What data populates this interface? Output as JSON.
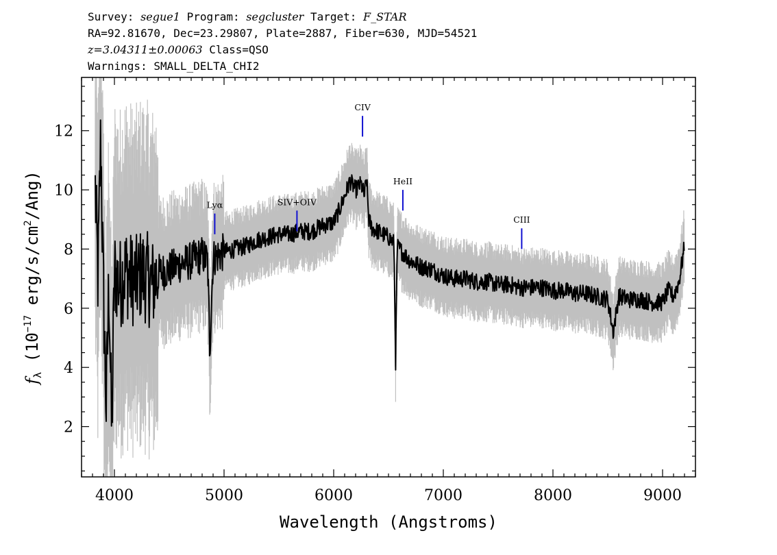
{
  "header": {
    "line1": {
      "survey_label": "Survey: ",
      "survey": "segue1",
      "program_label": " Program: ",
      "program": "segcluster",
      "target_label": " Target: ",
      "target": "F_STAR"
    },
    "line2": "RA=92.81670, Dec=23.29807, Plate=2887, Fiber=630, MJD=54521",
    "line3": {
      "z": "z=3.04311±0.00063",
      "class": " Class=QSO"
    },
    "line4": "Warnings: SMALL_DELTA_CHI2"
  },
  "chart_data": {
    "type": "line",
    "xlabel": "Wavelength (Angstroms)",
    "ylabel": {
      "symbol": "f",
      "sub": "λ",
      "text_open": " (10",
      "sup1": "−17",
      "text_mid": " erg/s/cm",
      "sup2": "2",
      "text_close": "/Ang)"
    },
    "xlim": [
      3700,
      9300
    ],
    "ylim": [
      0.3,
      13.8
    ],
    "xticks": [
      4000,
      5000,
      6000,
      7000,
      8000,
      9000
    ],
    "yticks": [
      2,
      4,
      6,
      8,
      10,
      12
    ],
    "colors": {
      "flux": "#000000",
      "noise": "#c0c0c0",
      "line_marker": "#1010d0"
    },
    "lines": [
      {
        "name": "Lyα",
        "wavelength": 4915,
        "y_top": 9.2,
        "y_bottom": 8.5
      },
      {
        "name": "SIV+OIV",
        "wavelength": 5665,
        "y_top": 9.3,
        "y_bottom": 8.6
      },
      {
        "name": "CIV",
        "wavelength": 6263,
        "y_top": 12.5,
        "y_bottom": 11.8
      },
      {
        "name": "HeII",
        "wavelength": 6631,
        "y_top": 10.0,
        "y_bottom": 9.3
      },
      {
        "name": "CIII",
        "wavelength": 7715,
        "y_top": 8.7,
        "y_bottom": 8.0
      }
    ],
    "series": [
      {
        "name": "flux",
        "x": [
          3825,
          3850,
          3875,
          3900,
          3925,
          3950,
          3975,
          4000,
          4050,
          4100,
          4150,
          4200,
          4250,
          4300,
          4350,
          4400,
          4500,
          4600,
          4700,
          4800,
          4850,
          4870,
          4900,
          4950,
          5000,
          5100,
          5200,
          5300,
          5400,
          5500,
          5600,
          5700,
          5800,
          5900,
          6000,
          6050,
          6100,
          6150,
          6200,
          6250,
          6280,
          6300,
          6320,
          6350,
          6400,
          6450,
          6500,
          6550,
          6565,
          6580,
          6600,
          6650,
          6700,
          6800,
          6900,
          7000,
          7100,
          7200,
          7300,
          7400,
          7500,
          7600,
          7700,
          7800,
          7900,
          8000,
          8100,
          8200,
          8300,
          8400,
          8500,
          8550,
          8600,
          8700,
          8800,
          8900,
          9000,
          9050,
          9100,
          9150,
          9200
        ],
        "y": [
          10.0,
          7.0,
          11.8,
          6.5,
          2.6,
          7.0,
          1.7,
          7.2,
          6.8,
          7.3,
          7.0,
          6.9,
          7.2,
          7.0,
          6.8,
          7.2,
          7.3,
          7.5,
          7.6,
          7.8,
          7.6,
          4.6,
          7.7,
          7.8,
          7.9,
          8.0,
          8.1,
          8.3,
          8.4,
          8.5,
          8.5,
          8.6,
          8.6,
          8.8,
          8.9,
          9.3,
          9.8,
          10.3,
          10.0,
          10.2,
          9.8,
          10.4,
          9.0,
          8.7,
          8.6,
          8.5,
          8.4,
          8.2,
          4.2,
          8.1,
          8.0,
          7.8,
          7.6,
          7.4,
          7.3,
          7.1,
          7.0,
          7.0,
          6.9,
          6.9,
          6.8,
          6.8,
          6.7,
          6.7,
          6.7,
          6.6,
          6.6,
          6.5,
          6.5,
          6.4,
          6.3,
          5.2,
          6.4,
          6.3,
          6.3,
          6.2,
          6.2,
          6.6,
          6.4,
          6.9,
          8.1
        ]
      }
    ]
  }
}
